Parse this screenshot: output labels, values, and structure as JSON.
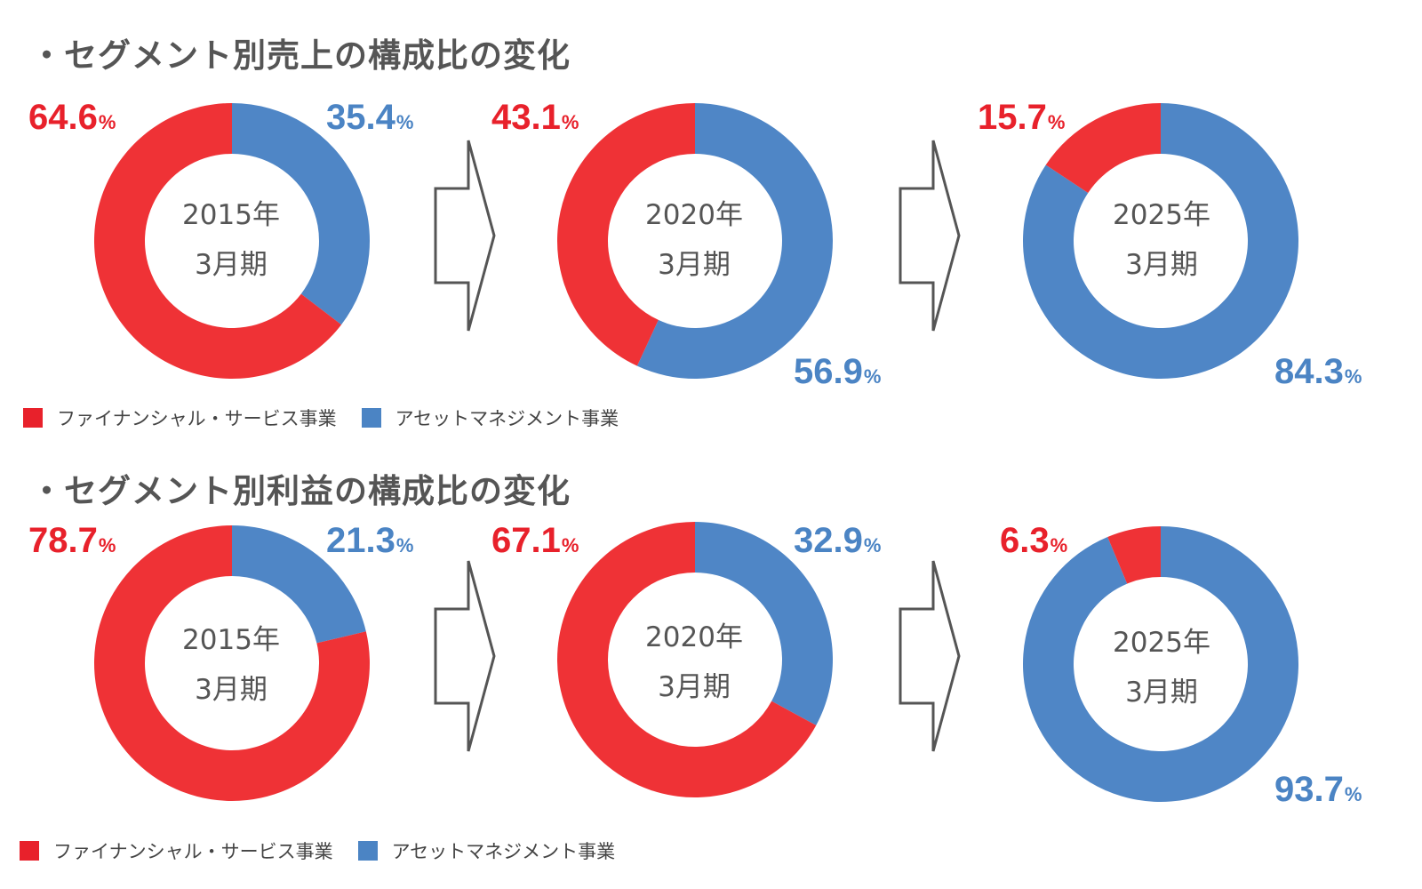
{
  "colors": {
    "financial": "#ef3236",
    "asset": "#4f86c6",
    "pct_red": "#e8212b",
    "pct_blue": "#4b84c4",
    "arrow_stroke": "#555555"
  },
  "legend": {
    "financial_label": "ファイナンシャル・サービス事業",
    "asset_label": "アセットマネジメント事業"
  },
  "sections": [
    {
      "title": "・セグメント別売上の構成比の変化",
      "charts": [
        {
          "year": "2015年",
          "period": "3月期",
          "financial_label": "64.6",
          "asset_label": "35.4",
          "pct_unit": "%"
        },
        {
          "year": "2020年",
          "period": "3月期",
          "financial_label": "43.1",
          "asset_label": "56.9",
          "pct_unit": "%"
        },
        {
          "year": "2025年",
          "period": "3月期",
          "financial_label": "15.7",
          "asset_label": "84.3",
          "pct_unit": "%"
        }
      ]
    },
    {
      "title": "・セグメント別利益の構成比の変化",
      "charts": [
        {
          "year": "2015年",
          "period": "3月期",
          "financial_label": "78.7",
          "asset_label": "21.3",
          "pct_unit": "%"
        },
        {
          "year": "2020年",
          "period": "3月期",
          "financial_label": "67.1",
          "asset_label": "32.9",
          "pct_unit": "%"
        },
        {
          "year": "2025年",
          "period": "3月期",
          "financial_label": "6.3",
          "asset_label": "93.7",
          "pct_unit": "%"
        }
      ]
    }
  ],
  "chart_data": [
    {
      "type": "pie",
      "title": "・セグメント別売上の構成比の変化",
      "center_label": "2015年 3月期",
      "series": [
        {
          "name": "ファイナンシャル・サービス事業",
          "values": [
            64.6
          ]
        },
        {
          "name": "アセットマネジメント事業",
          "values": [
            35.4
          ]
        }
      ]
    },
    {
      "type": "pie",
      "title": "・セグメント別売上の構成比の変化",
      "center_label": "2020年 3月期",
      "series": [
        {
          "name": "ファイナンシャル・サービス事業",
          "values": [
            43.1
          ]
        },
        {
          "name": "アセットマネジメント事業",
          "values": [
            56.9
          ]
        }
      ]
    },
    {
      "type": "pie",
      "title": "・セグメント別売上の構成比の変化",
      "center_label": "2025年 3月期",
      "series": [
        {
          "name": "ファイナンシャル・サービス事業",
          "values": [
            15.7
          ]
        },
        {
          "name": "アセットマネジメント事業",
          "values": [
            84.3
          ]
        }
      ]
    },
    {
      "type": "pie",
      "title": "・セグメント別利益の構成比の変化",
      "center_label": "2015年 3月期",
      "series": [
        {
          "name": "ファイナンシャル・サービス事業",
          "values": [
            78.7
          ]
        },
        {
          "name": "アセットマネジメント事業",
          "values": [
            21.3
          ]
        }
      ]
    },
    {
      "type": "pie",
      "title": "・セグメント別利益の構成比の変化",
      "center_label": "2020年 3月期",
      "series": [
        {
          "name": "ファイナンシャル・サービス事業",
          "values": [
            67.1
          ]
        },
        {
          "name": "アセットマネジメント事業",
          "values": [
            32.9
          ]
        }
      ]
    },
    {
      "type": "pie",
      "title": "・セグメント別利益の構成比の変化",
      "center_label": "2025年 3月期",
      "series": [
        {
          "name": "ファイナンシャル・サービス事業",
          "values": [
            6.3
          ]
        },
        {
          "name": "アセットマネジメント事業",
          "values": [
            93.7
          ]
        }
      ]
    }
  ]
}
